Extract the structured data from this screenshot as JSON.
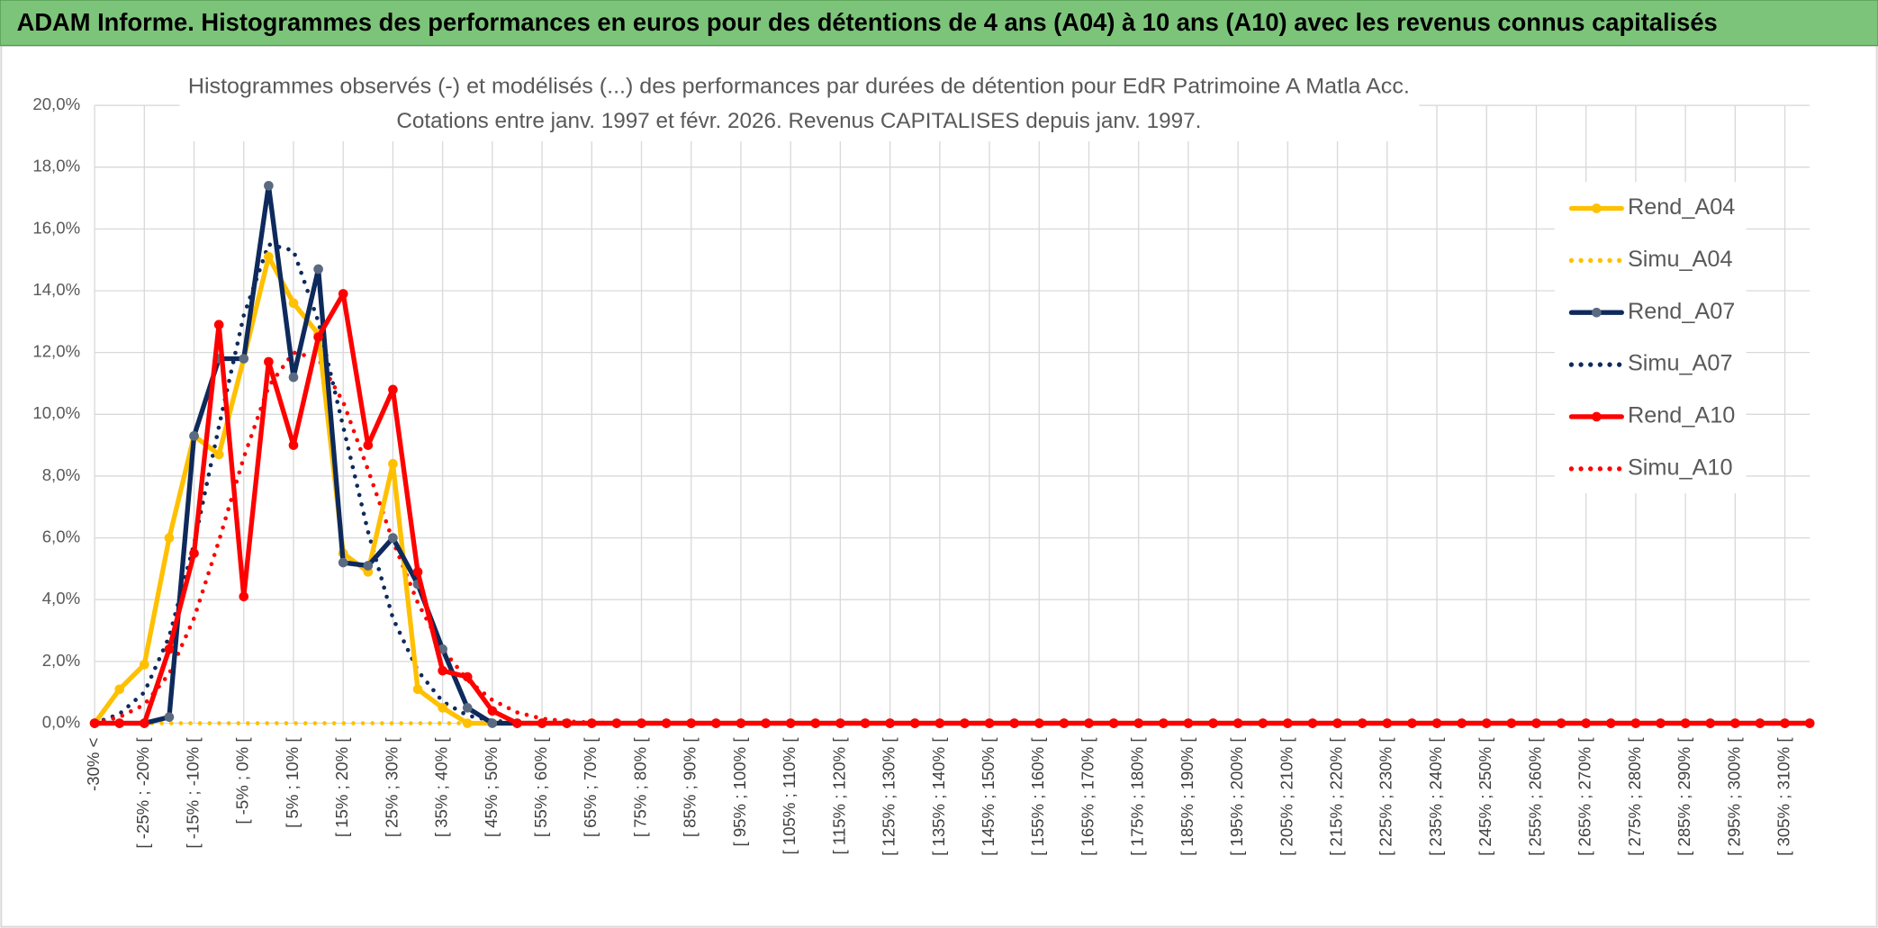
{
  "chart_data": {
    "type": "line",
    "title": "ADAM Informe. Histogrammes des performances en euros pour des détentions de 4 ans (A04) à 10 ans (A10) avec les revenus connus capitalisés",
    "subtitle": [
      "Histogrammes observés (-) et modélisés (...) des performances par durées de détention pour EdR Patrimoine A Matla Acc.",
      "Cotations entre janv. 1997 et févr. 2026. Revenus CAPITALISES depuis janv. 1997."
    ],
    "categories": [
      "-30% <",
      null,
      "[ -25% ; -20% [",
      null,
      "[ -15% ; -10% [",
      null,
      "[ -5% ; 0% [",
      null,
      "[ 5% ; 10% [",
      null,
      "[ 15% ; 20% [",
      null,
      "[ 25% ; 30% [",
      null,
      "[ 35% ; 40% [",
      null,
      "[ 45% ; 50% [",
      null,
      "[ 55% ; 60% [",
      null,
      "[ 65% ; 70% [",
      null,
      "[ 75% ; 80% [",
      null,
      "[ 85% ; 90% [",
      null,
      "[ 95% ; 100% [",
      null,
      "[ 105% ; 110% [",
      null,
      "[ 115% ; 120% [",
      null,
      "[ 125% ; 130% [",
      null,
      "[ 135% ; 140% [",
      null,
      "[ 145% ; 150% [",
      null,
      "[ 155% ; 160% [",
      null,
      "[ 165% ; 170% [",
      null,
      "[ 175% ; 180% [",
      null,
      "[ 185% ; 190% [",
      null,
      "[ 195% ; 200% [",
      null,
      "[ 205% ; 210% [",
      null,
      "[ 215% ; 220% [",
      null,
      "[ 225% ; 230% [",
      null,
      "[ 235% ; 240% [",
      null,
      "[ 245% ; 250% [",
      null,
      "[ 255% ; 260% [",
      null,
      "[ 265% ; 270% [",
      null,
      "[ 275% ; 280% [",
      null,
      "[ 285% ; 290% [",
      null,
      "[ 295% ; 300% [",
      null,
      "[ 305% ; 310% [",
      null
    ],
    "series": [
      {
        "name": "Rend_A04",
        "color": "#ffc000",
        "style": "solid",
        "marker_color": "#ffc000",
        "values": [
          0,
          1.1,
          1.9,
          6.0,
          9.3,
          8.7,
          11.8,
          15.1,
          13.6,
          12.6,
          5.5,
          4.9,
          8.4,
          1.1,
          0.5,
          0,
          0,
          0,
          0,
          0,
          0,
          0,
          0,
          0,
          0,
          0,
          0,
          0,
          0,
          0,
          0,
          0,
          0,
          0,
          0,
          0,
          0,
          0,
          0,
          0,
          0,
          0,
          0,
          0,
          0,
          0,
          0,
          0,
          0,
          0,
          0,
          0,
          0,
          0,
          0,
          0,
          0,
          0,
          0,
          0,
          0,
          0,
          0,
          0,
          0,
          0,
          0,
          0,
          0,
          0
        ]
      },
      {
        "name": "Simu_A04",
        "color": "#ffc000",
        "style": "dotted",
        "values": [
          0,
          0,
          0,
          0,
          0,
          0,
          0,
          0,
          0,
          0,
          0,
          0,
          0,
          0,
          0,
          0,
          0,
          0,
          0,
          0,
          0,
          0,
          0,
          0,
          0,
          0,
          0,
          0,
          0,
          0,
          0,
          0,
          0,
          0,
          0,
          0,
          0,
          0,
          0,
          0,
          0,
          0,
          0,
          0,
          0,
          0,
          0,
          0,
          0,
          0,
          0,
          0,
          0,
          0,
          0,
          0,
          0,
          0,
          0,
          0,
          0,
          0,
          0,
          0,
          0,
          0,
          0,
          0,
          0,
          0
        ]
      },
      {
        "name": "Rend_A07",
        "color": "#0e2a5c",
        "style": "solid",
        "marker_color": "#5a6a80",
        "values": [
          0,
          0,
          0,
          0.2,
          9.3,
          11.8,
          11.8,
          17.4,
          11.2,
          14.7,
          5.2,
          5.1,
          6.0,
          4.5,
          2.4,
          0.5,
          0,
          0,
          0,
          0,
          0,
          0,
          0,
          0,
          0,
          0,
          0,
          0,
          0,
          0,
          0,
          0,
          0,
          0,
          0,
          0,
          0,
          0,
          0,
          0,
          0,
          0,
          0,
          0,
          0,
          0,
          0,
          0,
          0,
          0,
          0,
          0,
          0,
          0,
          0,
          0,
          0,
          0,
          0,
          0,
          0,
          0,
          0,
          0,
          0,
          0,
          0,
          0,
          0,
          0
        ]
      },
      {
        "name": "Simu_A07",
        "color": "#0e2a5c",
        "style": "dotted",
        "values": [
          0,
          0.3,
          1.0,
          2.8,
          5.8,
          9.6,
          13.2,
          15.5,
          15.3,
          13.0,
          9.6,
          6.2,
          3.4,
          1.7,
          0.7,
          0.25,
          0.08,
          0.02,
          0,
          0,
          0,
          0,
          0,
          0,
          0,
          0,
          0,
          0,
          0,
          0,
          0,
          0,
          0,
          0,
          0,
          0,
          0,
          0,
          0,
          0,
          0,
          0,
          0,
          0,
          0,
          0,
          0,
          0,
          0,
          0,
          0,
          0,
          0,
          0,
          0,
          0,
          0,
          0,
          0,
          0,
          0,
          0,
          0,
          0,
          0,
          0,
          0,
          0,
          0,
          0
        ]
      },
      {
        "name": "Rend_A10",
        "color": "#ff0000",
        "style": "solid",
        "marker_color": "#ff0000",
        "values": [
          0,
          0,
          0,
          2.4,
          5.5,
          12.9,
          4.1,
          11.7,
          9.0,
          12.5,
          13.9,
          9.0,
          10.8,
          4.9,
          1.7,
          1.5,
          0.4,
          0,
          0,
          0,
          0,
          0,
          0,
          0,
          0,
          0,
          0,
          0,
          0,
          0,
          0,
          0,
          0,
          0,
          0,
          0,
          0,
          0,
          0,
          0,
          0,
          0,
          0,
          0,
          0,
          0,
          0,
          0,
          0,
          0,
          0,
          0,
          0,
          0,
          0,
          0,
          0,
          0,
          0,
          0,
          0,
          0,
          0,
          0,
          0,
          0,
          0,
          0,
          0,
          0
        ]
      },
      {
        "name": "Simu_A10",
        "color": "#ff0000",
        "style": "dotted",
        "values": [
          0,
          0.2,
          0.6,
          1.6,
          3.4,
          5.9,
          8.6,
          10.9,
          12.0,
          11.8,
          10.4,
          8.2,
          5.9,
          3.9,
          2.4,
          1.4,
          0.75,
          0.35,
          0.15,
          0.06,
          0.02,
          0,
          0,
          0,
          0,
          0,
          0,
          0,
          0,
          0,
          0,
          0,
          0,
          0,
          0,
          0,
          0,
          0,
          0,
          0,
          0,
          0,
          0,
          0,
          0,
          0,
          0,
          0,
          0,
          0,
          0,
          0,
          0,
          0,
          0,
          0,
          0,
          0,
          0,
          0,
          0,
          0,
          0,
          0,
          0,
          0,
          0,
          0,
          0,
          0
        ]
      }
    ],
    "ylim": [
      0,
      20
    ],
    "yticks": [
      {
        "value": 0,
        "label": "0,0%"
      },
      {
        "value": 2,
        "label": "2,0%"
      },
      {
        "value": 4,
        "label": "4,0%"
      },
      {
        "value": 6,
        "label": "6,0%"
      },
      {
        "value": 8,
        "label": "8,0%"
      },
      {
        "value": 10,
        "label": "10,0%"
      },
      {
        "value": 12,
        "label": "12,0%"
      },
      {
        "value": 14,
        "label": "14,0%"
      },
      {
        "value": 16,
        "label": "16,0%"
      },
      {
        "value": 18,
        "label": "18,0%"
      },
      {
        "value": 20,
        "label": "20,0%"
      }
    ],
    "grid": true,
    "legend": "right"
  }
}
